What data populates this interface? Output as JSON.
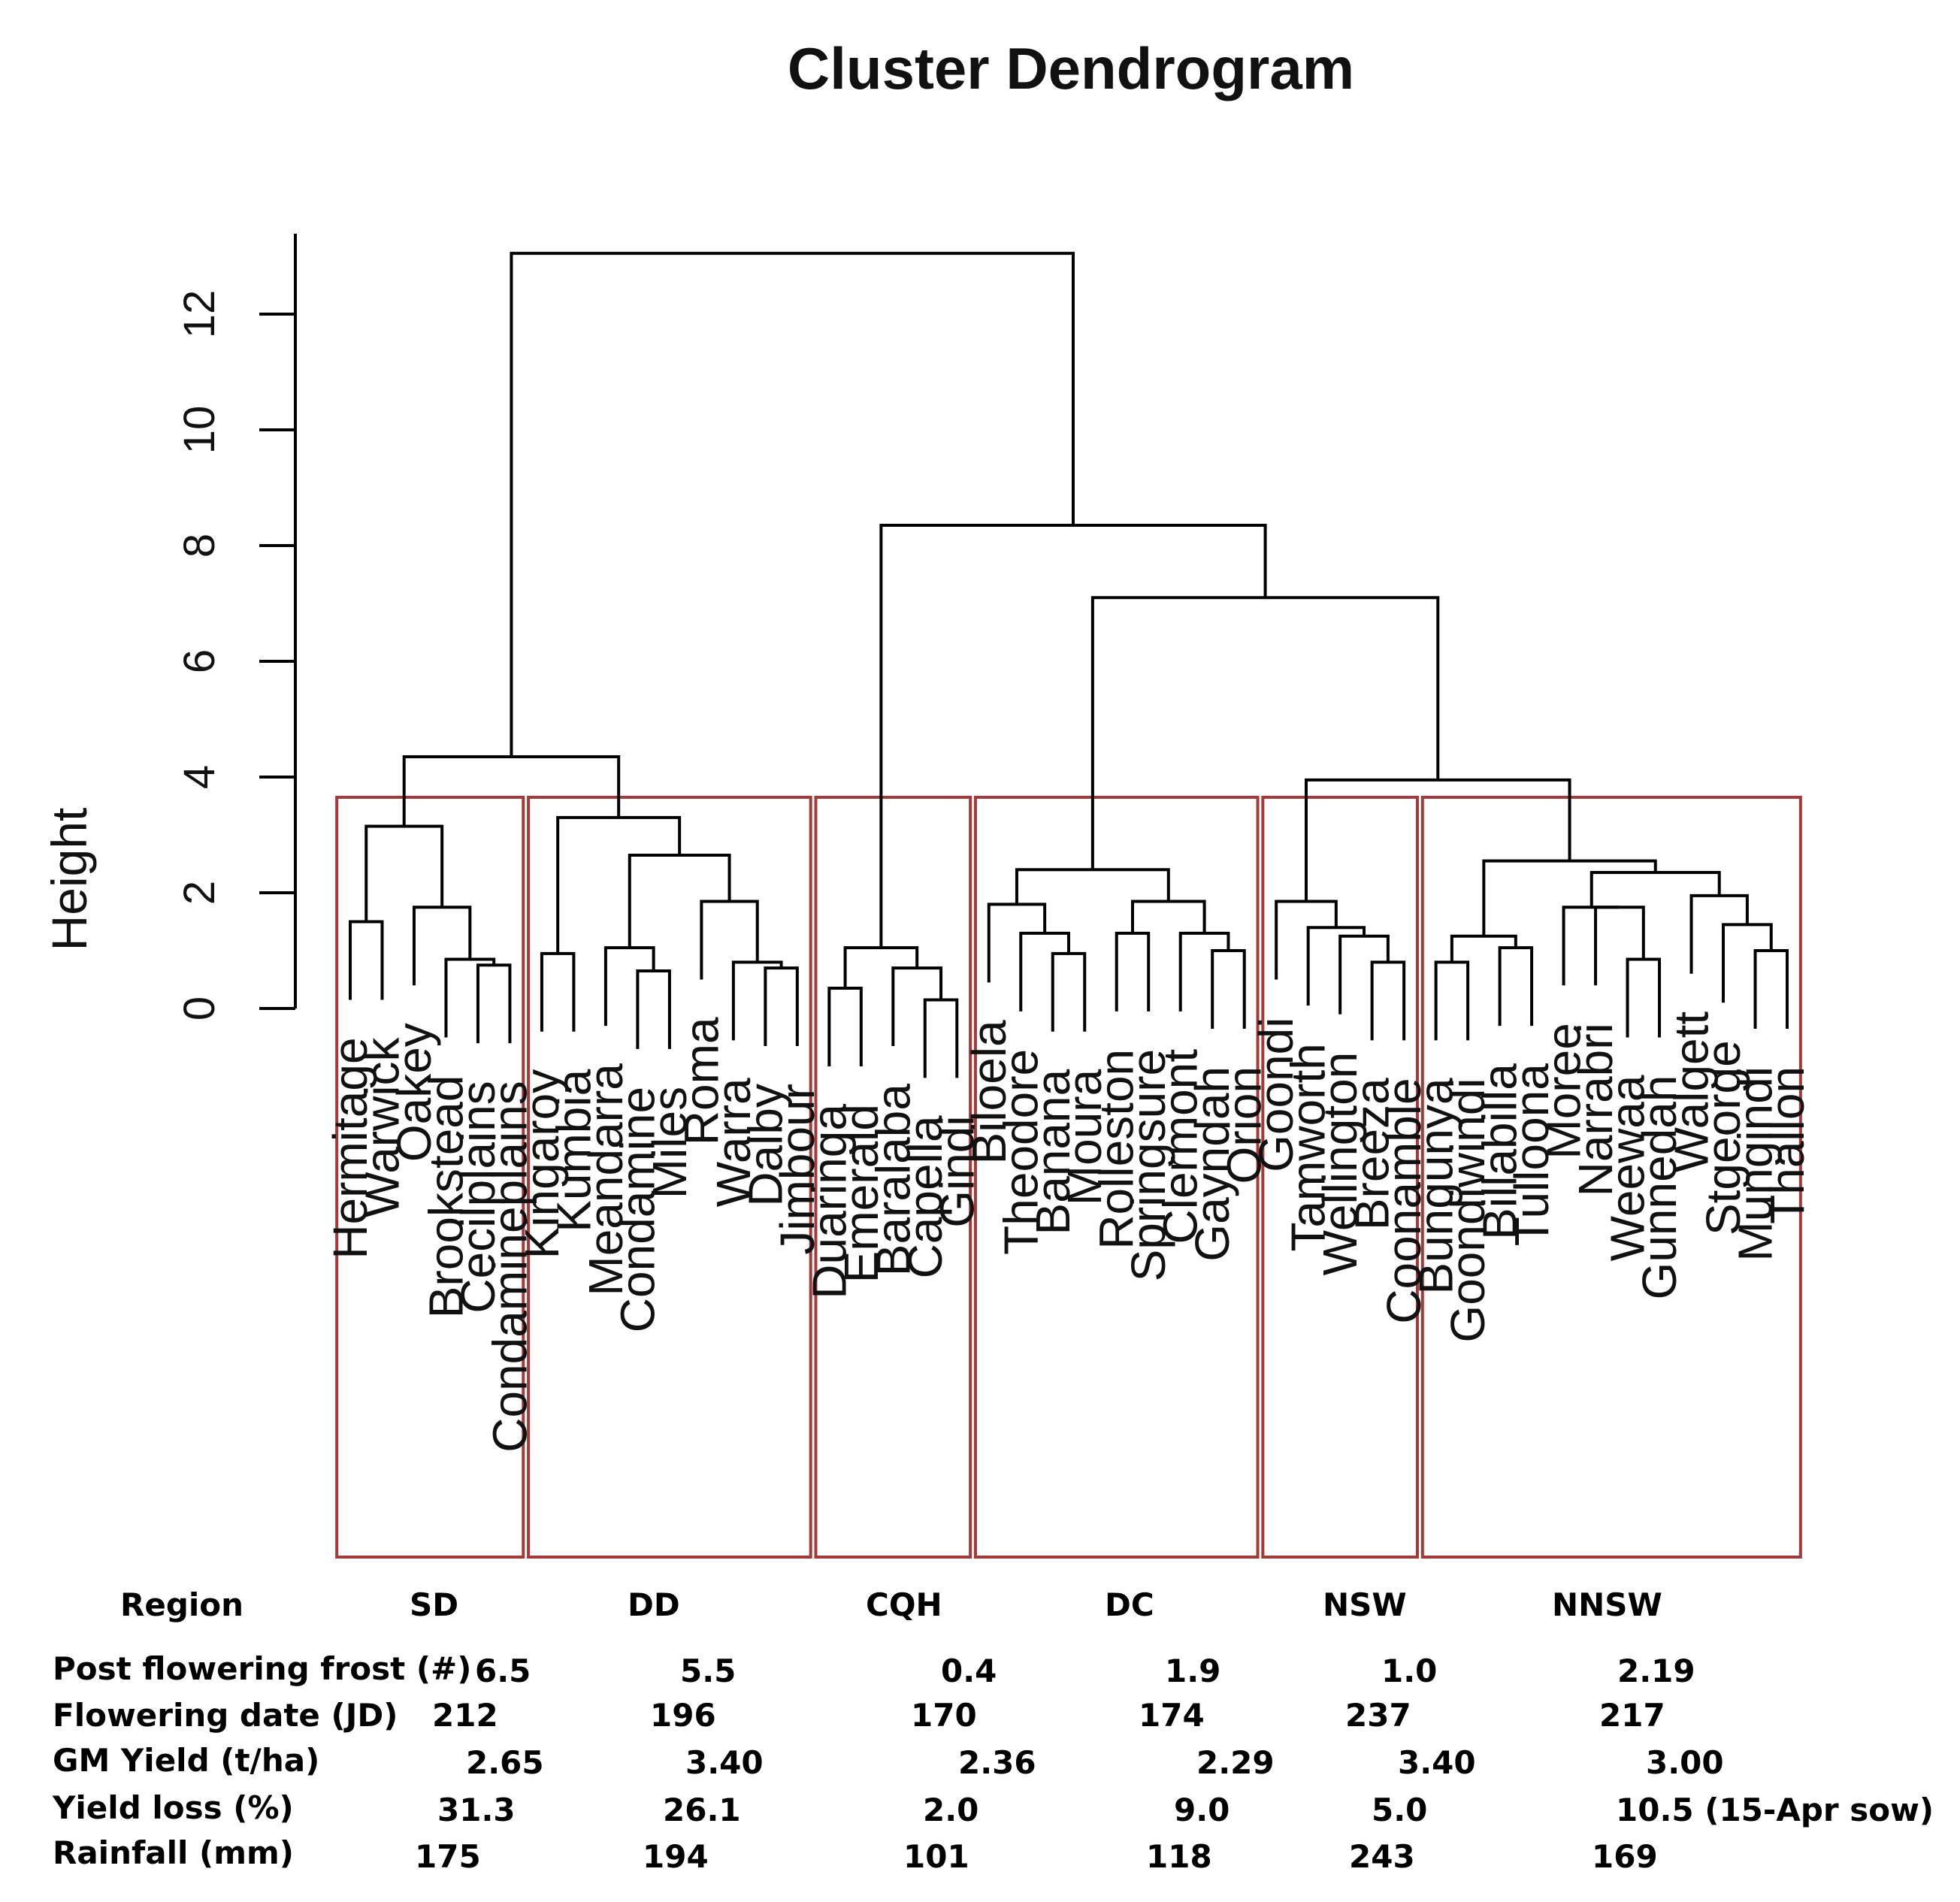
{
  "chart_data": {
    "type": "dendrogram",
    "title": "Cluster Dendrogram",
    "ylabel": "Height",
    "ylim": [
      0,
      13
    ],
    "yticks": [
      0,
      2,
      4,
      6,
      8,
      10,
      12
    ],
    "leaves": [
      "Hermitage",
      "Warwick",
      "Oakey",
      "Brookstead",
      "Cecilplains",
      "Condamineplains",
      "Kingaroy",
      "Kumbia",
      "Meandarra",
      "Condamine",
      "Miles",
      "Roma",
      "Warra",
      "Dalby",
      "Jimbour",
      "Duaringa",
      "Emerald",
      "Baralaba",
      "Capella",
      "Gindi",
      "Biloela",
      "Theodore",
      "Banana",
      "Moura",
      "Rolleston",
      "Springsure",
      "Clermont",
      "Gayndah",
      "Orion",
      "Goondi",
      "Tamworth",
      "Wellington",
      "Breeza",
      "Coonamble",
      "Bungunya",
      "Goondiwindi",
      "Billabilla",
      "Tulloona",
      "Moree",
      "Narrabri",
      "Weewaa",
      "Gunnedah",
      "Walgett",
      "Stgeorge",
      "Mungindi",
      "Thallon"
    ],
    "merges": [
      {
        "id": "a1",
        "left": "Cecilplains",
        "right": "Condamineplains",
        "height": 0.75
      },
      {
        "id": "a2",
        "left": "Brookstead",
        "right": "a1",
        "height": 0.85
      },
      {
        "id": "a3",
        "left": "Oakey",
        "right": "a2",
        "height": 1.75
      },
      {
        "id": "a4",
        "left": "Hermitage",
        "right": "Warwick",
        "height": 1.5
      },
      {
        "id": "SD",
        "left": "a4",
        "right": "a3",
        "height": 3.15
      },
      {
        "id": "b1",
        "left": "Kingaroy",
        "right": "Kumbia",
        "height": 0.95
      },
      {
        "id": "b2",
        "left": "Condamine",
        "right": "Miles",
        "height": 0.65
      },
      {
        "id": "b3",
        "left": "Meandarra",
        "right": "b2",
        "height": 1.05
      },
      {
        "id": "b4",
        "left": "Dalby",
        "right": "Jimbour",
        "height": 0.7
      },
      {
        "id": "b5",
        "left": "Warra",
        "right": "b4",
        "height": 0.8
      },
      {
        "id": "b6",
        "left": "Roma",
        "right": "b5",
        "height": 1.85
      },
      {
        "id": "b7",
        "left": "b3",
        "right": "b6",
        "height": 2.65
      },
      {
        "id": "DD",
        "left": "b1",
        "right": "b7",
        "height": 3.3
      },
      {
        "id": "SD_DD",
        "left": "SD",
        "right": "DD",
        "height": 4.35
      },
      {
        "id": "c1",
        "left": "Capella",
        "right": "Gindi",
        "height": 0.15
      },
      {
        "id": "c2",
        "left": "Baralaba",
        "right": "c1",
        "height": 0.7
      },
      {
        "id": "c3",
        "left": "Duaringa",
        "right": "Emerald",
        "height": 0.35
      },
      {
        "id": "CQH",
        "left": "c3",
        "right": "c2",
        "height": 1.05
      },
      {
        "id": "d1",
        "left": "Banana",
        "right": "Moura",
        "height": 0.95
      },
      {
        "id": "d2",
        "left": "Theodore",
        "right": "d1",
        "height": 1.3
      },
      {
        "id": "d3",
        "left": "Biloela",
        "right": "d2",
        "height": 1.8
      },
      {
        "id": "d4",
        "left": "Gayndah",
        "right": "Orion",
        "height": 1.0
      },
      {
        "id": "d5",
        "left": "Clermont",
        "right": "d4",
        "height": 1.3
      },
      {
        "id": "d6",
        "left": "Rolleston",
        "right": "Springsure",
        "height": 1.3
      },
      {
        "id": "d7",
        "left": "d6",
        "right": "d5",
        "height": 1.85
      },
      {
        "id": "DC",
        "left": "d3",
        "right": "d7",
        "height": 2.4
      },
      {
        "id": "e1",
        "left": "Breeza",
        "right": "Coonamble",
        "height": 0.8
      },
      {
        "id": "e2",
        "left": "Wellington",
        "right": "e1",
        "height": 1.25
      },
      {
        "id": "e3",
        "left": "Tamworth",
        "right": "e2",
        "height": 1.4
      },
      {
        "id": "NSW",
        "left": "Goondi",
        "right": "e3",
        "height": 1.85
      },
      {
        "id": "f1",
        "left": "Bungunya",
        "right": "Goondiwindi",
        "height": 0.8
      },
      {
        "id": "f2",
        "left": "Billabilla",
        "right": "Tulloona",
        "height": 1.05
      },
      {
        "id": "f3",
        "left": "f1",
        "right": "f2",
        "height": 1.25
      },
      {
        "id": "f4",
        "left": "Weewaa",
        "right": "Gunnedah",
        "height": 0.85
      },
      {
        "id": "f5",
        "left": "Narrabri",
        "right": "f4",
        "height": 1.75
      },
      {
        "id": "f6",
        "left": "Moree",
        "right": "f5",
        "height": 1.75
      },
      {
        "id": "f7",
        "left": "Mungindi",
        "right": "Thallon",
        "height": 1.0
      },
      {
        "id": "f8",
        "left": "Stgeorge",
        "right": "f7",
        "height": 1.45
      },
      {
        "id": "f9",
        "left": "Walgett",
        "right": "f8",
        "height": 1.95
      },
      {
        "id": "f10",
        "left": "f6",
        "right": "f9",
        "height": 2.35
      },
      {
        "id": "NNSW",
        "left": "f3",
        "right": "f10",
        "height": 2.55
      },
      {
        "id": "NSW_NNSW",
        "left": "NSW",
        "right": "NNSW",
        "height": 3.95
      },
      {
        "id": "DC_N",
        "left": "DC",
        "right": "NSW_NNSW",
        "height": 7.1
      },
      {
        "id": "CQH_REST",
        "left": "CQH",
        "right": "DC_N",
        "height": 8.35
      },
      {
        "id": "ROOT",
        "left": "SD_DD",
        "right": "CQH_REST",
        "height": 13.05
      }
    ],
    "clusters": [
      {
        "region": "SD",
        "first_leaf": "Hermitage",
        "last_leaf": "Condamineplains"
      },
      {
        "region": "DD",
        "first_leaf": "Kingaroy",
        "last_leaf": "Jimbour"
      },
      {
        "region": "CQH",
        "first_leaf": "Duaringa",
        "last_leaf": "Gindi"
      },
      {
        "region": "DC",
        "first_leaf": "Biloela",
        "last_leaf": "Orion"
      },
      {
        "region": "NSW",
        "first_leaf": "Goondi",
        "last_leaf": "Coonamble"
      },
      {
        "region": "NNSW",
        "first_leaf": "Bungunya",
        "last_leaf": "Thallon"
      }
    ],
    "cluster_box_color": "#a33a3a",
    "table": {
      "row_labels": [
        "Region",
        "Post flowering frost (#)",
        "Flowering date  (JD)",
        "GM Yield (t/ha)",
        "Yield loss (%)",
        "Rainfall   (mm)"
      ],
      "regions": [
        "SD",
        "DD",
        "CQH",
        "DC",
        "NSW",
        "NNSW"
      ],
      "frost": [
        "6.5",
        "5.5",
        "0.4",
        "1.9",
        "1.0",
        "2.19"
      ],
      "flowering_date": [
        "212",
        "196",
        "170",
        "174",
        "237",
        "217"
      ],
      "gm_yield": [
        "2.65",
        "3.40",
        "2.36",
        "2.29",
        "3.40",
        "3.00"
      ],
      "yield_loss": [
        "31.3",
        "26.1",
        "2.0",
        "9.0",
        "5.0",
        "10.5  (15-Apr sow)"
      ],
      "rainfall": [
        "175",
        "194",
        "101",
        "118",
        "243",
        "169"
      ]
    }
  }
}
